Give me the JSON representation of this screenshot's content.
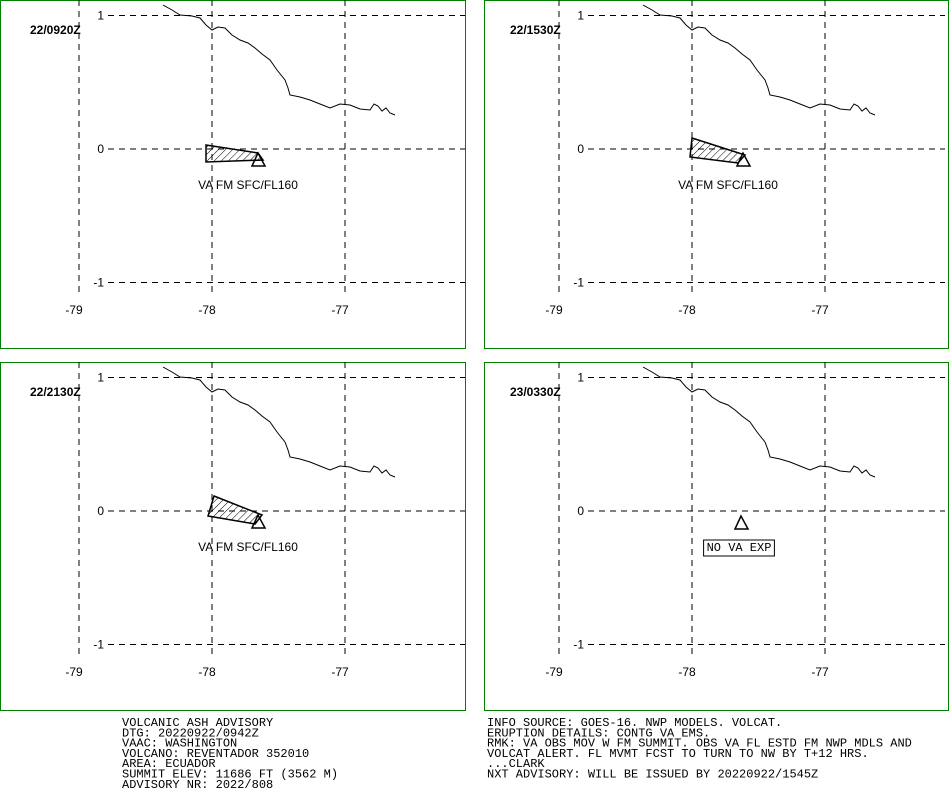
{
  "panels": [
    {
      "time": "22/0920Z",
      "label": "VA FM SFC/FL160"
    },
    {
      "time": "22/1530Z",
      "label": "VA FM SFC/FL160"
    },
    {
      "time": "22/2130Z",
      "label": "VA FM SFC/FL160"
    },
    {
      "time": "23/0330Z",
      "label": "NO VA EXP"
    }
  ],
  "xticks": [
    -79,
    -78,
    -77
  ],
  "yticks": [
    1,
    0,
    -1
  ],
  "advisory": {
    "left": [
      "VOLCANIC ASH ADVISORY",
      "DTG: 20220922/0942Z",
      "VAAC: WASHINGTON",
      "VOLCANO: REVENTADOR 352010",
      "AREA: ECUADOR",
      "SUMMIT ELEV: 11686 FT (3562 M)",
      "ADVISORY NR: 2022/808"
    ],
    "right": [
      "INFO SOURCE: GOES-16. NWP MODELS. VOLCAT.",
      "ERUPTION DETAILS: CONTG VA EMS.",
      "RMK: VA OBS MOV W FM SUMMIT. OBS VA FL ESTD FM NWP MDLS AND",
      "VOLCAT ALERT. FL MVMT FCST TO TURN TO NW BY T+12 HRS.",
      "...CLARK",
      "NXT ADVISORY: WILL BE ISSUED BY 20220922/1545Z"
    ]
  }
}
